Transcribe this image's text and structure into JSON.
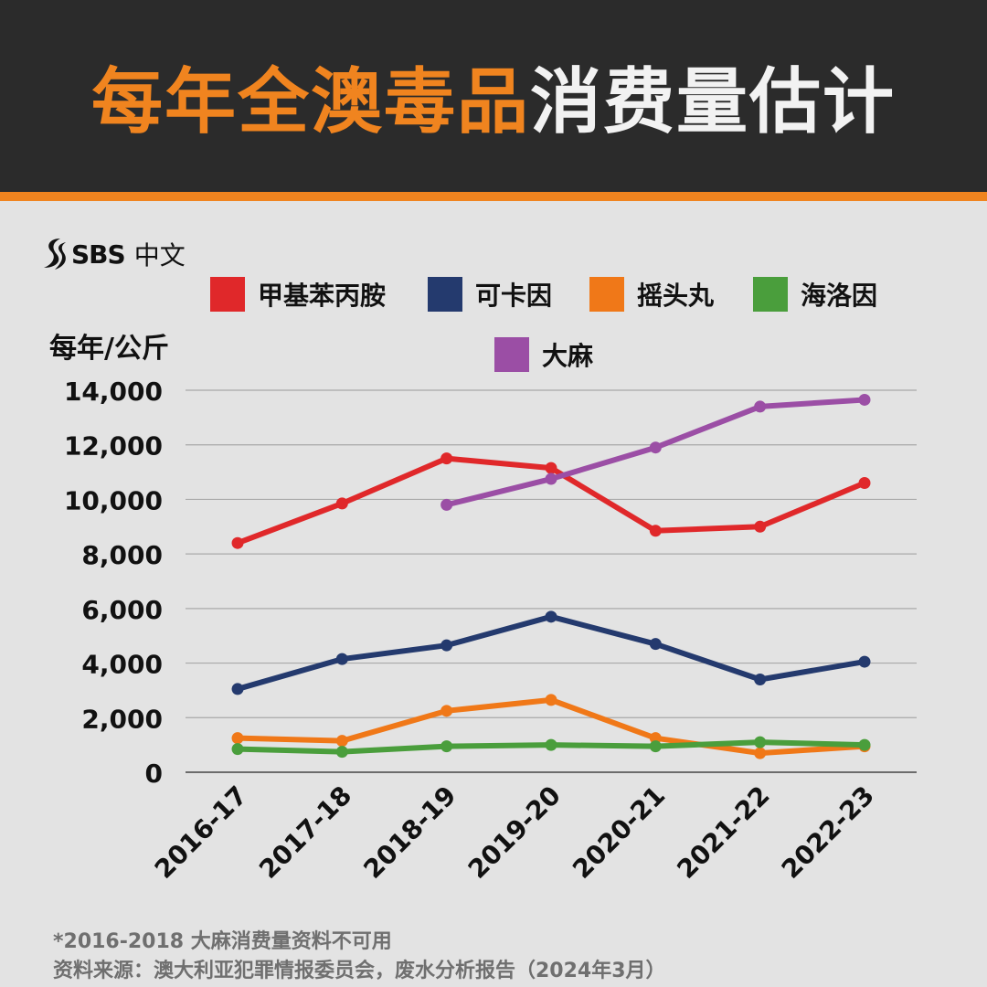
{
  "header": {
    "title_highlight": "每年全澳毒品",
    "title_rest": "消费量估计"
  },
  "logo": {
    "brand": "SBS",
    "sub": "中文"
  },
  "colors": {
    "accent": "#f0841f",
    "header_bg": "#2b2b2b",
    "background": "#e3e3e3"
  },
  "legend": [
    {
      "label": "甲基苯丙胺",
      "color": "#e0282a"
    },
    {
      "label": "可卡因",
      "color": "#243a6e"
    },
    {
      "label": "摇头丸",
      "color": "#f07818"
    },
    {
      "label": "海洛因",
      "color": "#4a9e3c"
    },
    {
      "label": "大麻",
      "color": "#9b4ea5"
    }
  ],
  "chart_data": {
    "type": "line",
    "title": "每年全澳毒品消费量估计",
    "ylabel": "每年/公斤",
    "xlabel": "",
    "categories": [
      "2016-17",
      "2017-18",
      "2018-19",
      "2019-20",
      "2020-21",
      "2021-22",
      "2022-23"
    ],
    "ylim": [
      0,
      14000
    ],
    "yticks": [
      0,
      2000,
      4000,
      6000,
      8000,
      10000,
      12000,
      14000
    ],
    "ytick_labels": [
      "0",
      "2,000",
      "4,000",
      "6,000",
      "8,000",
      "10,000",
      "12,000",
      "14,000"
    ],
    "grid": true,
    "series": [
      {
        "name": "甲基苯丙胺",
        "color": "#e0282a",
        "values": [
          8400,
          9850,
          11500,
          11150,
          8850,
          9000,
          10600
        ]
      },
      {
        "name": "可卡因",
        "color": "#243a6e",
        "values": [
          3050,
          4150,
          4650,
          5700,
          4700,
          3400,
          4050
        ]
      },
      {
        "name": "摇头丸",
        "color": "#f07818",
        "values": [
          1250,
          1150,
          2250,
          2650,
          1250,
          700,
          950
        ]
      },
      {
        "name": "海洛因",
        "color": "#4a9e3c",
        "values": [
          850,
          750,
          950,
          1000,
          950,
          1100,
          1000
        ]
      },
      {
        "name": "大麻",
        "color": "#9b4ea5",
        "values": [
          null,
          null,
          9800,
          10750,
          11900,
          13400,
          13650
        ]
      }
    ]
  },
  "footnotes": {
    "note": "*2016-2018 大麻消费量资料不可用",
    "source": "资料来源：澳大利亚犯罪情报委员会，废水分析报告（2024年3月）"
  }
}
